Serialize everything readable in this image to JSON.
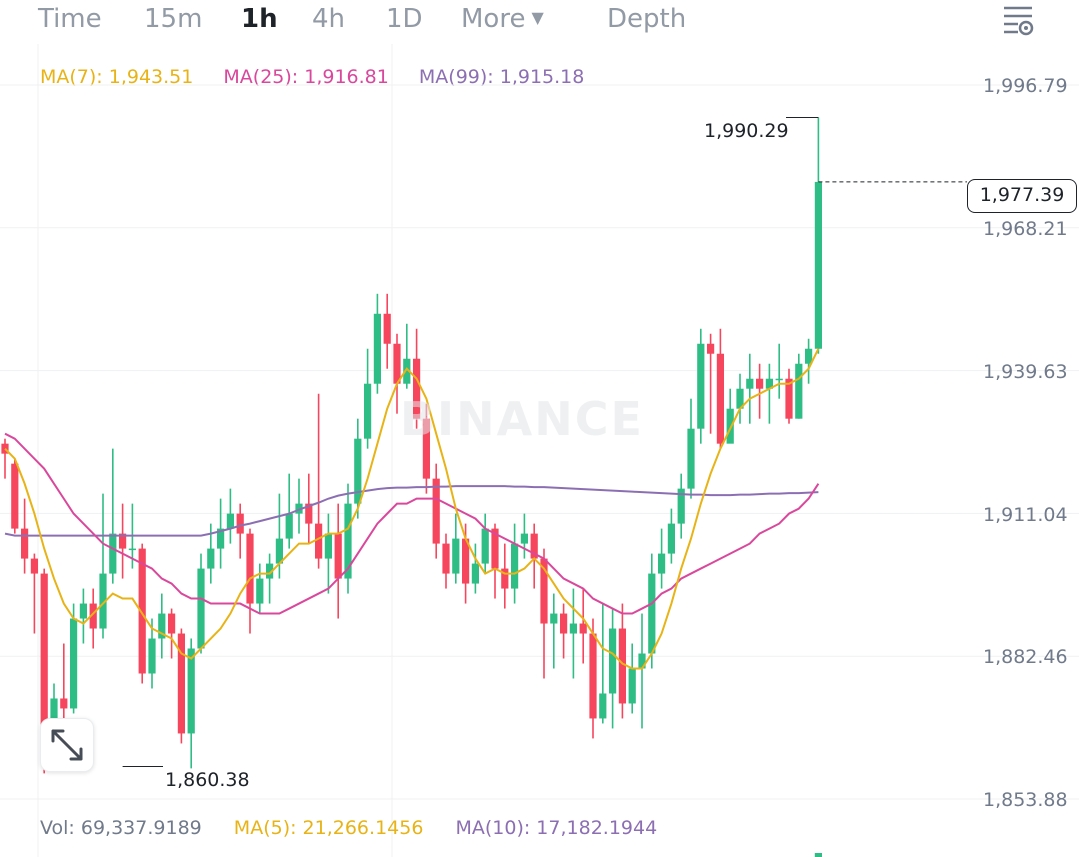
{
  "toolbar": {
    "timeframes": [
      "Time",
      "15m",
      "1h",
      "4h",
      "1D"
    ],
    "active": "1h",
    "more_label": "More",
    "depth_label": "Depth"
  },
  "ma_legend": {
    "ma7": "MA(7): 1,943.51",
    "ma25": "MA(25): 1,916.81",
    "ma99": "MA(99): 1,915.18"
  },
  "y_axis": {
    "labels": [
      "1,996.79",
      "1,968.21",
      "1,939.63",
      "1,911.04",
      "1,882.46",
      "1,853.88"
    ]
  },
  "price_tag": "1,977.39",
  "high_label": "1,990.29",
  "low_label": "1,860.38",
  "watermark": "BINANCE",
  "volume": {
    "vol": "Vol: 69,337.9189",
    "ma5": "MA(5): 21,266.1456",
    "ma10": "MA(10): 17,182.1944"
  },
  "colors": {
    "up": "#2ebd85",
    "down": "#f6465d",
    "ma7": "#e8b316",
    "ma25": "#d9489c",
    "ma99": "#8c6fb3"
  },
  "chart_data": {
    "type": "candlestick",
    "y_ticks": [
      1996.79,
      1968.21,
      1939.63,
      1911.04,
      1882.46,
      1853.88
    ],
    "high_marker": 1990.29,
    "low_marker": 1860.38,
    "last_price": 1977.39,
    "candles": [
      [
        1925,
        1923,
        1926,
        1918
      ],
      [
        1921,
        1908,
        1922,
        1907
      ],
      [
        1908,
        1902,
        1914,
        1899
      ],
      [
        1902,
        1899,
        1903,
        1887
      ],
      [
        1899,
        1866,
        1900,
        1859
      ],
      [
        1866,
        1874,
        1877,
        1865
      ],
      [
        1874,
        1872,
        1885,
        1870
      ],
      [
        1872,
        1890,
        1893,
        1871
      ],
      [
        1890,
        1893,
        1896,
        1885
      ],
      [
        1893,
        1888,
        1896,
        1884
      ],
      [
        1888,
        1899,
        1915,
        1886
      ],
      [
        1899,
        1907,
        1924,
        1897
      ],
      [
        1907,
        1904,
        1913,
        1898
      ],
      [
        1904,
        1904,
        1913,
        1900
      ],
      [
        1904,
        1879,
        1905,
        1877
      ],
      [
        1879,
        1886,
        1890,
        1876
      ],
      [
        1886,
        1891,
        1895,
        1882
      ],
      [
        1891,
        1887,
        1892,
        1882
      ],
      [
        1887,
        1867,
        1888,
        1865
      ],
      [
        1867,
        1884,
        1886,
        1860
      ],
      [
        1884,
        1900,
        1903,
        1883
      ],
      [
        1900,
        1904,
        1909,
        1897
      ],
      [
        1904,
        1908,
        1914,
        1900
      ],
      [
        1908,
        1911,
        1916,
        1905
      ],
      [
        1911,
        1907,
        1913,
        1902
      ],
      [
        1907,
        1893,
        1908,
        1887
      ],
      [
        1893,
        1898,
        1901,
        1891
      ],
      [
        1898,
        1901,
        1903,
        1893
      ],
      [
        1901,
        1906,
        1915,
        1898
      ],
      [
        1906,
        1911,
        1919,
        1904
      ],
      [
        1911,
        1913,
        1918,
        1907
      ],
      [
        1913,
        1909,
        1919,
        1905
      ],
      [
        1909,
        1902,
        1935,
        1900
      ],
      [
        1902,
        1907,
        1911,
        1895
      ],
      [
        1907,
        1898,
        1913,
        1890
      ],
      [
        1898,
        1913,
        1917,
        1895
      ],
      [
        1913,
        1926,
        1930,
        1910
      ],
      [
        1926,
        1937,
        1944,
        1924
      ],
      [
        1937,
        1951,
        1955,
        1935
      ],
      [
        1951,
        1945,
        1955,
        1940
      ],
      [
        1945,
        1937,
        1947,
        1931
      ],
      [
        1937,
        1942,
        1949,
        1936
      ],
      [
        1942,
        1930,
        1948,
        1928
      ],
      [
        1930,
        1918,
        1933,
        1915
      ],
      [
        1918,
        1905,
        1921,
        1902
      ],
      [
        1905,
        1899,
        1907,
        1896
      ],
      [
        1899,
        1906,
        1911,
        1897
      ],
      [
        1906,
        1897,
        1909,
        1893
      ],
      [
        1897,
        1901,
        1905,
        1895
      ],
      [
        1901,
        1908,
        1911,
        1899
      ],
      [
        1908,
        1900,
        1909,
        1894
      ],
      [
        1900,
        1896,
        1905,
        1892
      ],
      [
        1896,
        1905,
        1909,
        1893
      ],
      [
        1905,
        1907,
        1911,
        1902
      ],
      [
        1907,
        1902,
        1909,
        1896
      ],
      [
        1902,
        1889,
        1904,
        1878
      ],
      [
        1889,
        1891,
        1895,
        1880
      ],
      [
        1891,
        1887,
        1893,
        1882
      ],
      [
        1887,
        1889,
        1896,
        1878
      ],
      [
        1889,
        1887,
        1896,
        1881
      ],
      [
        1887,
        1870,
        1890,
        1866
      ],
      [
        1870,
        1875,
        1893,
        1869
      ],
      [
        1875,
        1888,
        1892,
        1868
      ],
      [
        1888,
        1873,
        1893,
        1870
      ],
      [
        1873,
        1880,
        1885,
        1871
      ],
      [
        1880,
        1883,
        1891,
        1868
      ],
      [
        1883,
        1899,
        1903,
        1880
      ],
      [
        1899,
        1903,
        1908,
        1896
      ],
      [
        1903,
        1909,
        1912,
        1901
      ],
      [
        1909,
        1916,
        1919,
        1906
      ],
      [
        1916,
        1928,
        1934,
        1914
      ],
      [
        1928,
        1945,
        1948,
        1925
      ],
      [
        1945,
        1943,
        1947,
        1927
      ],
      [
        1943,
        1925,
        1948,
        1924
      ],
      [
        1925,
        1932,
        1936,
        1927
      ],
      [
        1932,
        1936,
        1939,
        1929
      ],
      [
        1936,
        1938,
        1943,
        1929
      ],
      [
        1938,
        1936,
        1941,
        1930
      ],
      [
        1936,
        1938,
        1941,
        1929
      ],
      [
        1938,
        1938,
        1945,
        1934
      ],
      [
        1938,
        1930,
        1940,
        1929
      ],
      [
        1930,
        1941,
        1943,
        1930
      ],
      [
        1941,
        1944,
        1946,
        1937
      ],
      [
        1944,
        1977.39,
        1990.29,
        1943
      ]
    ],
    "ma7": [
      1924,
      1922,
      1917,
      1911,
      1904,
      1898,
      1893,
      1890,
      1889,
      1891,
      1893,
      1895,
      1894,
      1894,
      1891,
      1888,
      1887,
      1886,
      1883,
      1882,
      1884,
      1886,
      1888,
      1891,
      1895,
      1898,
      1899,
      1899,
      1901,
      1903,
      1905,
      1905,
      1906,
      1907,
      1907,
      1908,
      1912,
      1918,
      1925,
      1932,
      1937,
      1940,
      1938,
      1934,
      1927,
      1920,
      1912,
      1906,
      1902,
      1899,
      1900,
      1899,
      1899,
      1900,
      1902,
      1900,
      1897,
      1894,
      1892,
      1890,
      1887,
      1884,
      1883,
      1881,
      1880,
      1880,
      1883,
      1887,
      1893,
      1900,
      1906,
      1913,
      1919,
      1924,
      1928,
      1932,
      1934,
      1935,
      1936,
      1937,
      1937,
      1938,
      1940,
      1944
    ],
    "ma25": [
      1927,
      1926,
      1924,
      1922,
      1920,
      1917,
      1914,
      1911,
      1909,
      1907,
      1905,
      1904,
      1903,
      1902,
      1901,
      1900,
      1898,
      1897,
      1895,
      1894,
      1894,
      1893,
      1893,
      1893,
      1893,
      1892,
      1891,
      1891,
      1891,
      1892,
      1893,
      1894,
      1895,
      1896,
      1898,
      1900,
      1903,
      1906,
      1909,
      1911,
      1913,
      1913,
      1914,
      1914,
      1914,
      1913,
      1912,
      1911,
      1910,
      1908,
      1907,
      1906,
      1905,
      1904,
      1903,
      1902,
      1900,
      1898,
      1897,
      1896,
      1894,
      1893,
      1892,
      1891,
      1891,
      1892,
      1893,
      1895,
      1896,
      1898,
      1899,
      1900,
      1901,
      1902,
      1903,
      1904,
      1905,
      1907,
      1908,
      1909,
      1911,
      1912,
      1914,
      1917
    ],
    "ma99": [
      1907,
      1906.6,
      1906.6,
      1906.6,
      1906.6,
      1906.6,
      1906.6,
      1906.6,
      1906.6,
      1906.6,
      1906.6,
      1906.6,
      1906.6,
      1906.6,
      1906.6,
      1906.6,
      1906.6,
      1906.6,
      1906.6,
      1906.6,
      1906.6,
      1907,
      1907.5,
      1908,
      1908.6,
      1909,
      1909.5,
      1910,
      1910.5,
      1911,
      1911.8,
      1912.5,
      1913.2,
      1914,
      1914.6,
      1915,
      1915.3,
      1915.6,
      1915.9,
      1916.1,
      1916.2,
      1916.2,
      1916.3,
      1916.3,
      1916.4,
      1916.4,
      1916.5,
      1916.5,
      1916.5,
      1916.5,
      1916.5,
      1916.5,
      1916.4,
      1916.4,
      1916.3,
      1916.3,
      1916.2,
      1916.1,
      1916,
      1915.9,
      1915.8,
      1915.7,
      1915.6,
      1915.5,
      1915.4,
      1915.3,
      1915.2,
      1915.1,
      1915,
      1914.9,
      1914.8,
      1914.8,
      1914.7,
      1914.7,
      1914.7,
      1914.8,
      1914.8,
      1914.9,
      1915,
      1915,
      1915.1,
      1915.1,
      1915.2,
      1915.3
    ]
  }
}
